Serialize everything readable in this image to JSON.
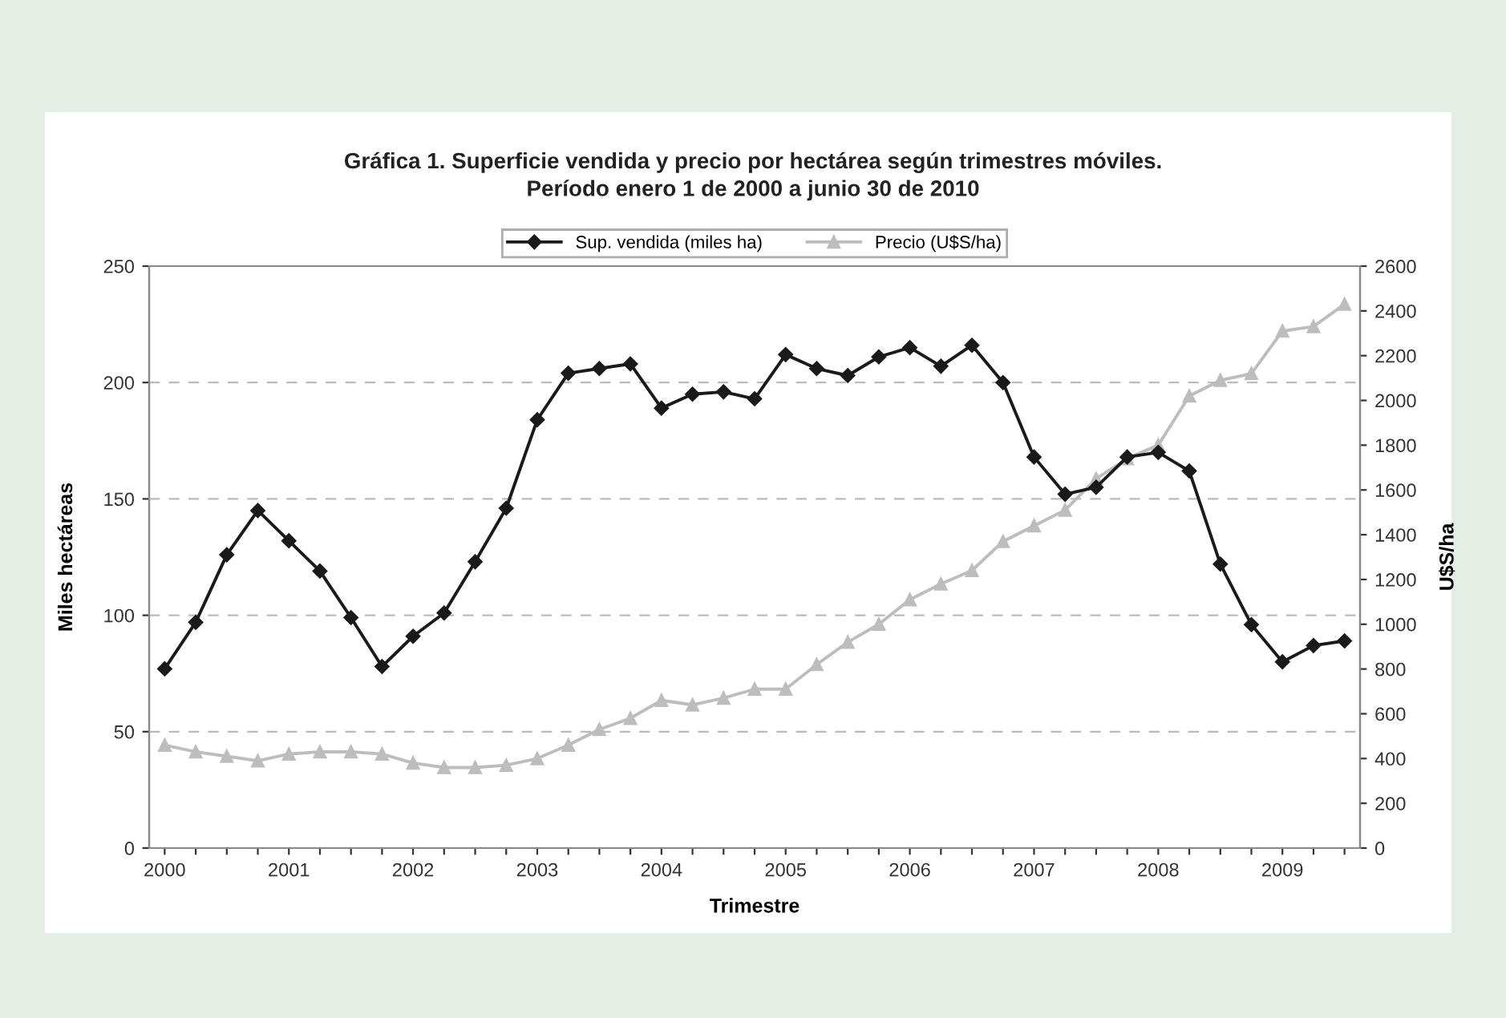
{
  "chart_data": {
    "type": "line",
    "title": "Gráfica 1. Superficie vendida y precio por hectárea según trimestres móviles.\nPeríodo enero 1 de 2000 a junio 30 de 2010",
    "xlabel": "Trimestre",
    "ylabel": "Miles hectáreas",
    "y2label": "U$S/ha",
    "categories": [
      "2000",
      null,
      null,
      null,
      "2001",
      null,
      null,
      null,
      "2002",
      null,
      null,
      null,
      "2003",
      null,
      null,
      null,
      "2004",
      null,
      null,
      null,
      "2005",
      null,
      null,
      null,
      "2006",
      null,
      null,
      null,
      "2007",
      null,
      null,
      null,
      "2008",
      null,
      null,
      null,
      "2009",
      null,
      null
    ],
    "series": [
      {
        "name": "Sup. vendida (miles ha)",
        "color": "#1a1a1a",
        "marker": "diamond",
        "values": [
          77,
          97,
          126,
          145,
          132,
          119,
          99,
          78,
          91,
          101,
          123,
          146,
          184,
          204,
          206,
          208,
          189,
          195,
          196,
          193,
          212,
          206,
          203,
          211,
          215,
          207,
          216,
          200,
          168,
          152,
          155,
          168,
          170,
          162,
          122,
          96,
          80,
          87,
          89
        ]
      },
      {
        "name": "Precio (U$S/ha)",
        "color": "#bdbdbd",
        "marker": "triangle",
        "axis": "y2",
        "values": [
          460,
          430,
          410,
          390,
          420,
          430,
          430,
          420,
          380,
          360,
          360,
          370,
          400,
          460,
          530,
          580,
          660,
          640,
          670,
          710,
          710,
          820,
          920,
          1000,
          1110,
          1180,
          1240,
          1370,
          1440,
          1510,
          1650,
          1740,
          1800,
          2020,
          2090,
          2120,
          2310,
          2330,
          2430
        ]
      }
    ],
    "ylim": [
      0,
      250
    ],
    "yticks": [
      0,
      50,
      100,
      150,
      200,
      250
    ],
    "y2lim": [
      0,
      2600
    ],
    "y2ticks": [
      0,
      200,
      400,
      600,
      800,
      1000,
      1200,
      1400,
      1600,
      1800,
      2000,
      2200,
      2400,
      2600
    ],
    "grid": "y",
    "legend": "top",
    "line_style": "solid"
  }
}
